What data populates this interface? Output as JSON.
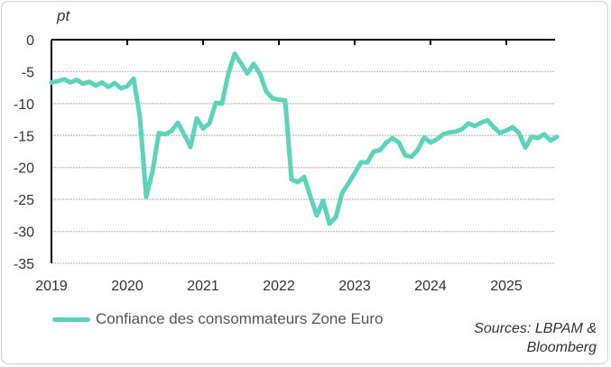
{
  "chart_data": {
    "type": "line",
    "unit_label": "pt",
    "ylim": [
      -35,
      0
    ],
    "yticks": [
      0,
      -5,
      -10,
      -15,
      -20,
      -25,
      -30,
      -35
    ],
    "xticks": [
      "2019",
      "2020",
      "2021",
      "2022",
      "2023",
      "2024",
      "2025"
    ],
    "grid": true,
    "legend_position": "bottom-left",
    "series": [
      {
        "name": "Confiance des consommateurs Zone Euro",
        "color": "#5dd4b9",
        "x": [
          "2019-01",
          "2019-02",
          "2019-03",
          "2019-04",
          "2019-05",
          "2019-06",
          "2019-07",
          "2019-08",
          "2019-09",
          "2019-10",
          "2019-11",
          "2019-12",
          "2020-01",
          "2020-02",
          "2020-03",
          "2020-04",
          "2020-05",
          "2020-06",
          "2020-07",
          "2020-08",
          "2020-09",
          "2020-10",
          "2020-11",
          "2020-12",
          "2021-01",
          "2021-02",
          "2021-03",
          "2021-04",
          "2021-05",
          "2021-06",
          "2021-07",
          "2021-08",
          "2021-09",
          "2021-10",
          "2021-11",
          "2021-12",
          "2022-01",
          "2022-02",
          "2022-03",
          "2022-04",
          "2022-05",
          "2022-06",
          "2022-07",
          "2022-08",
          "2022-09",
          "2022-10",
          "2022-11",
          "2022-12",
          "2023-01",
          "2023-02",
          "2023-03",
          "2023-04",
          "2023-05",
          "2023-06",
          "2023-07",
          "2023-08",
          "2023-09",
          "2023-10",
          "2023-11",
          "2023-12",
          "2024-01",
          "2024-02",
          "2024-03",
          "2024-04",
          "2024-05",
          "2024-06",
          "2024-07",
          "2024-08",
          "2024-09",
          "2024-10",
          "2024-11",
          "2024-12",
          "2025-01",
          "2025-02",
          "2025-03",
          "2025-04",
          "2025-05",
          "2025-06",
          "2025-07",
          "2025-08",
          "2025-09"
        ],
        "values": [
          -6.7,
          -6.5,
          -6.2,
          -6.7,
          -6.3,
          -6.9,
          -6.6,
          -7.2,
          -6.7,
          -7.4,
          -6.8,
          -7.6,
          -7.3,
          -6.1,
          -12.1,
          -24.6,
          -20.6,
          -14.6,
          -14.8,
          -14.3,
          -13.0,
          -14.8,
          -16.8,
          -12.3,
          -13.9,
          -13.1,
          -9.9,
          -10.0,
          -5.3,
          -2.2,
          -3.7,
          -5.3,
          -3.8,
          -5.3,
          -8.1,
          -9.2,
          -9.4,
          -9.5,
          -21.9,
          -22.3,
          -21.5,
          -24.6,
          -27.5,
          -25.2,
          -28.8,
          -27.8,
          -24.0,
          -22.5,
          -20.9,
          -19.2,
          -19.2,
          -17.5,
          -17.3,
          -16.1,
          -15.4,
          -16.1,
          -18.1,
          -18.3,
          -17.2,
          -15.3,
          -16.1,
          -15.6,
          -14.8,
          -14.5,
          -14.4,
          -14.0,
          -13.1,
          -13.5,
          -13.0,
          -12.6,
          -13.7,
          -14.6,
          -14.2,
          -13.7,
          -14.6,
          -16.9,
          -15.2,
          -15.4,
          -14.8,
          -15.8,
          -15.2
        ]
      }
    ],
    "sources": "Sources: LBPAM &\nBloomberg"
  }
}
